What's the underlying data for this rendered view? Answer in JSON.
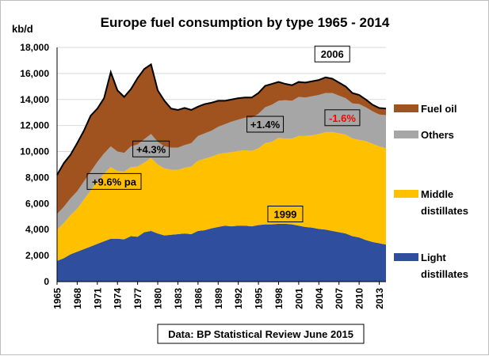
{
  "chart_data": {
    "type": "area",
    "stacked": true,
    "title": "Europe fuel consumption by type 1965 - 2014",
    "ylabel": "kb/d",
    "xlabel": "",
    "ylim": [
      0,
      18000
    ],
    "yticks": [
      "0",
      "2,000",
      "4,000",
      "6,000",
      "8,000",
      "10,000",
      "12,000",
      "14,000",
      "16,000",
      "18,000"
    ],
    "xticks": [
      "1965",
      "1968",
      "1971",
      "1974",
      "1977",
      "1980",
      "1983",
      "1986",
      "1989",
      "1992",
      "1995",
      "1998",
      "2001",
      "2004",
      "2007",
      "2010",
      "2013"
    ],
    "x": [
      1965,
      1966,
      1967,
      1968,
      1969,
      1970,
      1971,
      1972,
      1973,
      1974,
      1975,
      1976,
      1977,
      1978,
      1979,
      1980,
      1981,
      1982,
      1983,
      1984,
      1985,
      1986,
      1987,
      1988,
      1989,
      1990,
      1991,
      1992,
      1993,
      1994,
      1995,
      1996,
      1997,
      1998,
      1999,
      2000,
      2001,
      2002,
      2003,
      2004,
      2005,
      2006,
      2007,
      2008,
      2009,
      2010,
      2011,
      2012,
      2013,
      2014
    ],
    "series": [
      {
        "name": "Light distillates",
        "color": "#2f4f9e",
        "values": [
          1600,
          1800,
          2100,
          2300,
          2500,
          2700,
          2900,
          3100,
          3300,
          3300,
          3250,
          3500,
          3450,
          3800,
          3900,
          3700,
          3550,
          3600,
          3650,
          3700,
          3650,
          3900,
          3950,
          4100,
          4200,
          4300,
          4250,
          4300,
          4300,
          4250,
          4350,
          4400,
          4400,
          4450,
          4450,
          4400,
          4300,
          4200,
          4150,
          4050,
          4000,
          3900,
          3800,
          3700,
          3500,
          3400,
          3200,
          3050,
          2950,
          2850
        ]
      },
      {
        "name": "Middle distillates",
        "color": "#ffc000",
        "values": [
          2400,
          2700,
          3000,
          3300,
          3800,
          4300,
          4800,
          5200,
          5500,
          5200,
          5200,
          5300,
          5400,
          5350,
          5600,
          5300,
          5150,
          5000,
          4950,
          5050,
          5200,
          5400,
          5500,
          5500,
          5600,
          5600,
          5700,
          5750,
          5800,
          5800,
          5900,
          6250,
          6350,
          6600,
          6550,
          6600,
          6900,
          7000,
          7100,
          7300,
          7500,
          7600,
          7600,
          7600,
          7500,
          7500,
          7600,
          7550,
          7450,
          7400
        ]
      },
      {
        "name": "Others",
        "color": "#a6a6a6",
        "values": [
          1200,
          1250,
          1300,
          1350,
          1400,
          1450,
          1500,
          1550,
          1600,
          1500,
          1450,
          1600,
          1700,
          1800,
          1850,
          1750,
          1700,
          1700,
          1700,
          1750,
          1800,
          1900,
          1950,
          2000,
          2100,
          2200,
          2350,
          2400,
          2500,
          2550,
          2650,
          2750,
          2850,
          2850,
          2950,
          2900,
          3000,
          2950,
          3000,
          3000,
          3000,
          3000,
          2900,
          2800,
          2700,
          2750,
          2600,
          2500,
          2450,
          2550
        ]
      },
      {
        "name": "Fuel oil",
        "color": "#a0521f",
        "values": [
          3000,
          3350,
          3350,
          3700,
          3900,
          4300,
          4100,
          4250,
          5700,
          4700,
          4300,
          4400,
          5100,
          5400,
          5350,
          3950,
          3500,
          3000,
          2900,
          2850,
          2550,
          2250,
          2250,
          2150,
          2000,
          1800,
          1700,
          1650,
          1550,
          1550,
          1600,
          1650,
          1600,
          1450,
          1250,
          1200,
          1150,
          1150,
          1150,
          1150,
          1200,
          1100,
          1000,
          900,
          800,
          700,
          600,
          500,
          500,
          500
        ]
      }
    ],
    "legend": [
      "Fuel oil",
      "Others",
      "Middle distillates",
      "Light distillates"
    ],
    "legend_position": "right",
    "annotations": [
      {
        "text": "+9.6% pa",
        "color": "#000000",
        "x": 1973.5,
        "y": 7700
      },
      {
        "text": "+4.3%",
        "color": "#000000",
        "x": 1979,
        "y": 10200
      },
      {
        "text": "+1.4%",
        "color": "#000000",
        "x": 1996,
        "y": 12100
      },
      {
        "text": "-1.6%",
        "color": "#ff0000",
        "x": 2007.5,
        "y": 12600
      },
      {
        "text": "1999",
        "color": "#000000",
        "x": 1999,
        "y": 5200
      },
      {
        "text": "2006",
        "color": "#000000",
        "x": 2006,
        "y": 17500
      }
    ],
    "source": "Data: BP Statistical Review June 2015",
    "grid": true
  }
}
